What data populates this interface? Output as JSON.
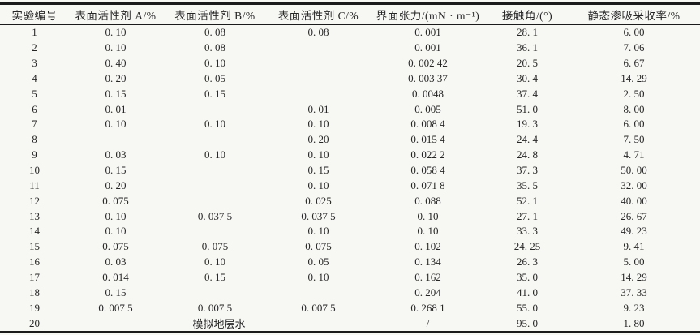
{
  "colors": {
    "background": "#f7f7f4",
    "border": "#1b1b1b",
    "text": "#262626"
  },
  "table": {
    "columns": [
      "实验编号",
      "表面活性剂 A/%",
      "表面活性剂 B/%",
      "表面活性剂 C/%",
      "界面张力/(mN · m⁻¹)",
      "接触角/(°)",
      "静态渗吸采收率/%"
    ],
    "rows": [
      {
        "cells": [
          "1",
          "0. 10",
          "0. 08",
          "0. 08",
          "0. 001",
          "28. 1",
          "6. 00"
        ]
      },
      {
        "cells": [
          "2",
          "0. 10",
          "0. 08",
          "",
          "0. 001",
          "36. 1",
          "7. 06"
        ]
      },
      {
        "cells": [
          "3",
          "0. 40",
          "0. 10",
          "",
          "0. 002 42",
          "20. 5",
          "6. 67"
        ]
      },
      {
        "cells": [
          "4",
          "0. 20",
          "0. 05",
          "",
          "0. 003 37",
          "30. 4",
          "14. 29"
        ]
      },
      {
        "cells": [
          "5",
          "0. 15",
          "0. 15",
          "",
          "0. 0048",
          "37. 4",
          "2. 50"
        ]
      },
      {
        "cells": [
          "6",
          "0. 01",
          "",
          "0. 01",
          "0. 005",
          "51. 0",
          "8. 00"
        ]
      },
      {
        "cells": [
          "7",
          "0. 10",
          "0. 10",
          "0. 10",
          "0. 008 4",
          "19. 3",
          "6. 00"
        ]
      },
      {
        "cells": [
          "8",
          "",
          "",
          "0. 20",
          "0. 015 4",
          "24. 4",
          "7. 50"
        ]
      },
      {
        "cells": [
          "9",
          "0. 03",
          "0. 10",
          "0. 10",
          "0. 022 2",
          "24. 8",
          "4. 71"
        ]
      },
      {
        "cells": [
          "10",
          "0. 15",
          "",
          "0. 15",
          "0. 058 4",
          "37. 3",
          "50. 00"
        ]
      },
      {
        "cells": [
          "11",
          "0. 20",
          "",
          "0. 10",
          "0. 071 8",
          "35. 5",
          "32. 00"
        ]
      },
      {
        "cells": [
          "12",
          "0. 075",
          "",
          "0. 025",
          "0. 088",
          "52. 1",
          "40. 00"
        ]
      },
      {
        "cells": [
          "13",
          "0. 10",
          "0. 037 5",
          "0. 037 5",
          "0. 10",
          "27. 1",
          "26. 67"
        ]
      },
      {
        "cells": [
          "14",
          "0. 10",
          "",
          "0. 10",
          "0. 10",
          "33. 3",
          "49. 23"
        ]
      },
      {
        "cells": [
          "15",
          "0. 075",
          "0. 075",
          "0. 075",
          "0. 102",
          "24. 25",
          "9. 41"
        ]
      },
      {
        "cells": [
          "16",
          "0. 03",
          "0. 10",
          "0. 05",
          "0. 134",
          "26. 3",
          "5. 00"
        ]
      },
      {
        "cells": [
          "17",
          "0. 014",
          "0. 15",
          "0. 10",
          "0. 162",
          "35. 0",
          "14. 29"
        ]
      },
      {
        "cells": [
          "18",
          "0. 15",
          "",
          "",
          "0. 204",
          "41. 0",
          "37. 33"
        ]
      },
      {
        "cells": [
          "19",
          "0. 007 5",
          "0. 007 5",
          "0. 007 5",
          "0. 268 1",
          "55. 0",
          "9. 23"
        ]
      },
      {
        "cells": [
          "20",
          "模拟地层水",
          "/",
          "95. 0",
          "1. 80"
        ],
        "merge": {
          "cellIndex": 1,
          "colspan": 3
        }
      }
    ]
  }
}
